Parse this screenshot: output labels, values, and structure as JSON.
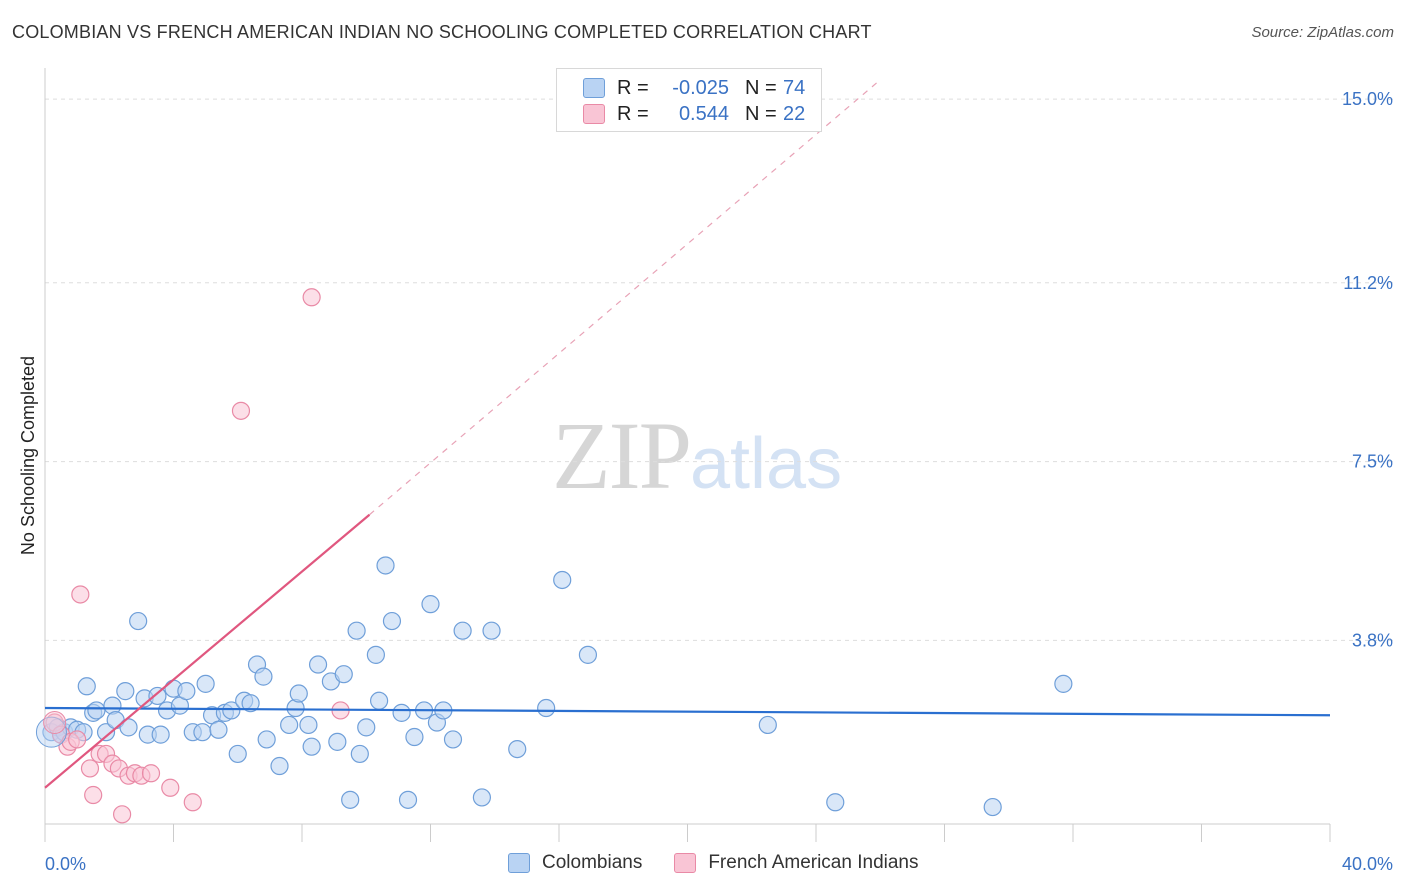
{
  "header": {
    "title": "COLOMBIAN VS FRENCH AMERICAN INDIAN NO SCHOOLING COMPLETED CORRELATION CHART",
    "source": "Source: ZipAtlas.com"
  },
  "watermark": {
    "zip": "ZIP",
    "atlas": "atlas"
  },
  "legend": {
    "rows": [
      {
        "r_label": "R =",
        "r_value": "-0.025",
        "n_label": "N =",
        "n_value": "74",
        "color": "#b9d3f3",
        "border": "#6f9fd9"
      },
      {
        "r_label": "R =",
        "r_value": "0.544",
        "n_label": "N =",
        "n_value": "22",
        "color": "#f9c5d5",
        "border": "#e98aa6"
      }
    ]
  },
  "bottom_legend": {
    "items": [
      {
        "label": "Colombians",
        "color": "#b9d3f3",
        "border": "#6f9fd9"
      },
      {
        "label": "French American Indians",
        "color": "#f9c5d5",
        "border": "#e98aa6"
      }
    ]
  },
  "chart_data": {
    "type": "scatter",
    "title": "COLOMBIAN VS FRENCH AMERICAN INDIAN NO SCHOOLING COMPLETED CORRELATION CHART",
    "xlabel": "",
    "ylabel": "No Schooling Completed",
    "xlim": [
      0,
      40
    ],
    "ylim": [
      0,
      15.5
    ],
    "x_tick_labels": [
      {
        "value": 0,
        "label": "0.0%"
      },
      {
        "value": 40,
        "label": "40.0%"
      }
    ],
    "y_tick_labels": [
      {
        "value": 3.8,
        "label": "3.8%"
      },
      {
        "value": 7.5,
        "label": "7.5%"
      },
      {
        "value": 11.2,
        "label": "11.2%"
      },
      {
        "value": 15.0,
        "label": "15.0%"
      }
    ],
    "series": [
      {
        "name": "Colombians",
        "color": "#6f9fd9",
        "fill": "#b9d3f3",
        "trend": {
          "x0": 0,
          "y0": 2.4,
          "x1": 40,
          "y1": 2.25,
          "color": "#2a6fd0"
        },
        "points": [
          [
            0.2,
            1.9
          ],
          [
            0.4,
            2.0
          ],
          [
            0.5,
            1.85
          ],
          [
            0.6,
            1.9
          ],
          [
            0.8,
            2.0
          ],
          [
            1.0,
            1.95
          ],
          [
            1.2,
            1.9
          ],
          [
            1.3,
            2.85
          ],
          [
            1.5,
            2.3
          ],
          [
            1.6,
            2.35
          ],
          [
            1.9,
            1.9
          ],
          [
            2.1,
            2.45
          ],
          [
            2.2,
            2.15
          ],
          [
            2.5,
            2.75
          ],
          [
            2.6,
            2.0
          ],
          [
            2.9,
            4.2
          ],
          [
            3.1,
            2.6
          ],
          [
            3.2,
            1.85
          ],
          [
            3.5,
            2.65
          ],
          [
            3.6,
            1.85
          ],
          [
            3.8,
            2.35
          ],
          [
            4.0,
            2.8
          ],
          [
            4.2,
            2.45
          ],
          [
            4.4,
            2.75
          ],
          [
            4.6,
            1.9
          ],
          [
            4.9,
            1.9
          ],
          [
            5.0,
            2.9
          ],
          [
            5.2,
            2.25
          ],
          [
            5.4,
            1.95
          ],
          [
            5.6,
            2.3
          ],
          [
            5.8,
            2.35
          ],
          [
            6.0,
            1.45
          ],
          [
            6.2,
            2.55
          ],
          [
            6.4,
            2.5
          ],
          [
            6.6,
            3.3
          ],
          [
            6.8,
            3.05
          ],
          [
            6.9,
            1.75
          ],
          [
            7.3,
            1.2
          ],
          [
            7.6,
            2.05
          ],
          [
            7.8,
            2.4
          ],
          [
            7.9,
            2.7
          ],
          [
            8.2,
            2.05
          ],
          [
            8.3,
            1.6
          ],
          [
            8.5,
            3.3
          ],
          [
            8.9,
            2.95
          ],
          [
            9.1,
            1.7
          ],
          [
            9.3,
            3.1
          ],
          [
            9.5,
            0.5
          ],
          [
            9.7,
            4.0
          ],
          [
            9.8,
            1.45
          ],
          [
            10.0,
            2.0
          ],
          [
            10.3,
            3.5
          ],
          [
            10.4,
            2.55
          ],
          [
            10.6,
            5.35
          ],
          [
            10.8,
            4.2
          ],
          [
            11.1,
            2.3
          ],
          [
            11.3,
            0.5
          ],
          [
            11.5,
            1.8
          ],
          [
            11.8,
            2.35
          ],
          [
            12.0,
            4.55
          ],
          [
            12.2,
            2.1
          ],
          [
            12.4,
            2.35
          ],
          [
            12.7,
            1.75
          ],
          [
            13.0,
            4.0
          ],
          [
            13.6,
            0.55
          ],
          [
            13.9,
            4.0
          ],
          [
            14.7,
            1.55
          ],
          [
            15.6,
            2.4
          ],
          [
            16.1,
            5.05
          ],
          [
            16.9,
            3.5
          ],
          [
            22.5,
            2.05
          ],
          [
            24.6,
            0.45
          ],
          [
            29.5,
            0.35
          ],
          [
            31.7,
            2.9
          ]
        ]
      },
      {
        "name": "French American Indians",
        "color": "#e98aa6",
        "fill": "#f9c5d5",
        "trend": {
          "x0": 0,
          "y0": 0.75,
          "x1": 10.1,
          "y1": 6.4,
          "color": "#e0577f",
          "dash_x1": 26.0,
          "dash_y1": 15.4
        },
        "points": [
          [
            0.3,
            2.1
          ],
          [
            0.5,
            1.85
          ],
          [
            0.7,
            1.6
          ],
          [
            0.8,
            1.7
          ],
          [
            1.0,
            1.75
          ],
          [
            1.1,
            4.75
          ],
          [
            1.4,
            1.15
          ],
          [
            1.5,
            0.6
          ],
          [
            1.7,
            1.45
          ],
          [
            1.9,
            1.45
          ],
          [
            2.1,
            1.25
          ],
          [
            2.3,
            1.15
          ],
          [
            2.4,
            0.2
          ],
          [
            2.6,
            1.0
          ],
          [
            2.8,
            1.05
          ],
          [
            3.0,
            1.0
          ],
          [
            3.3,
            1.05
          ],
          [
            3.9,
            0.75
          ],
          [
            4.6,
            0.45
          ],
          [
            6.1,
            8.55
          ],
          [
            8.3,
            10.9
          ],
          [
            9.2,
            2.35
          ]
        ]
      }
    ]
  }
}
